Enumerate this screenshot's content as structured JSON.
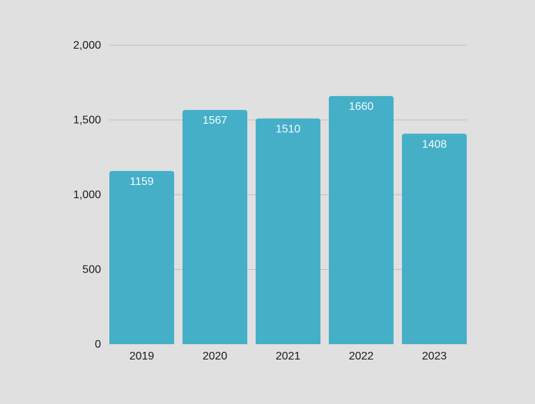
{
  "chart_data": {
    "type": "bar",
    "categories": [
      "2019",
      "2020",
      "2021",
      "2022",
      "2023"
    ],
    "values": [
      1159,
      1567,
      1510,
      1660,
      1408
    ],
    "ylim": [
      0,
      2000
    ],
    "yticks": [
      0,
      500,
      1000,
      1500,
      2000
    ],
    "ytick_labels": [
      "0",
      "500",
      "1,000",
      "1,500",
      "2,000"
    ],
    "grid": true,
    "legend": "none"
  },
  "colors": {
    "background": "#e0e0e0",
    "bar": "#45afc8",
    "grid": "#bdbdbd",
    "data_label": "#f4fbfd",
    "tick_label": "#1a1a1a"
  }
}
